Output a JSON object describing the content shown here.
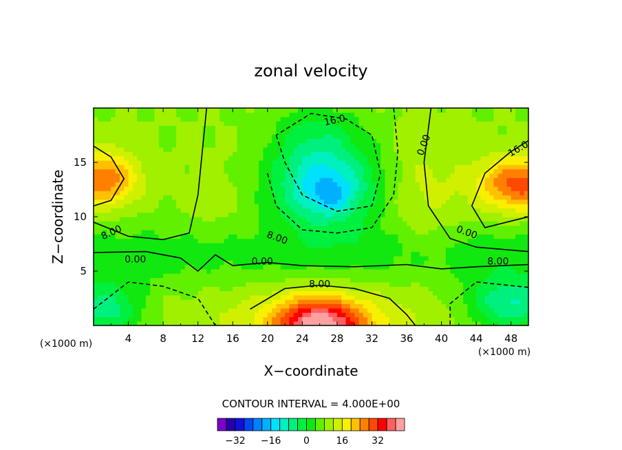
{
  "chart_data": {
    "type": "heatmap",
    "title": "zonal velocity",
    "xlabel": "X−coordinate",
    "ylabel": "Z−coordinate",
    "x_unit_left": "(×1000 m)",
    "x_unit_right": "(×1000 m)",
    "xlim": [
      0,
      50
    ],
    "ylim": [
      0,
      20
    ],
    "x_ticks": [
      "4",
      "8",
      "12",
      "16",
      "20",
      "24",
      "28",
      "32",
      "36",
      "40",
      "44",
      "48"
    ],
    "y_ticks": [
      "5",
      "10",
      "15"
    ],
    "contour_interval_text": "CONTOUR INTERVAL = 4.000E+00",
    "colorbar": {
      "levels": [
        -40,
        -36,
        -32,
        -28,
        -24,
        -20,
        -16,
        -12,
        -8,
        -4,
        0,
        4,
        8,
        12,
        16,
        20,
        24,
        28,
        32,
        36,
        40
      ],
      "colors": [
        "#7a00c8",
        "#2800a8",
        "#1010d8",
        "#0048f0",
        "#0080ff",
        "#00b0ff",
        "#00e0ff",
        "#00f0c0",
        "#00f080",
        "#00f040",
        "#10e810",
        "#60f000",
        "#a0f000",
        "#d0f000",
        "#f8f000",
        "#ffc000",
        "#ff8000",
        "#ff4800",
        "#ff0000",
        "#ff6060",
        "#ffa0a0"
      ],
      "tick_labels": [
        "−32",
        "−16",
        "0",
        "16",
        "32"
      ],
      "tick_values": [
        -32,
        -16,
        0,
        16,
        32
      ]
    },
    "contour_labels": [
      "16.0",
      "0.00",
      "16.0",
      "8.00",
      "0.00",
      "8.00",
      "0.00",
      "8.00",
      "0.00",
      "8.00"
    ],
    "grid": false
  }
}
